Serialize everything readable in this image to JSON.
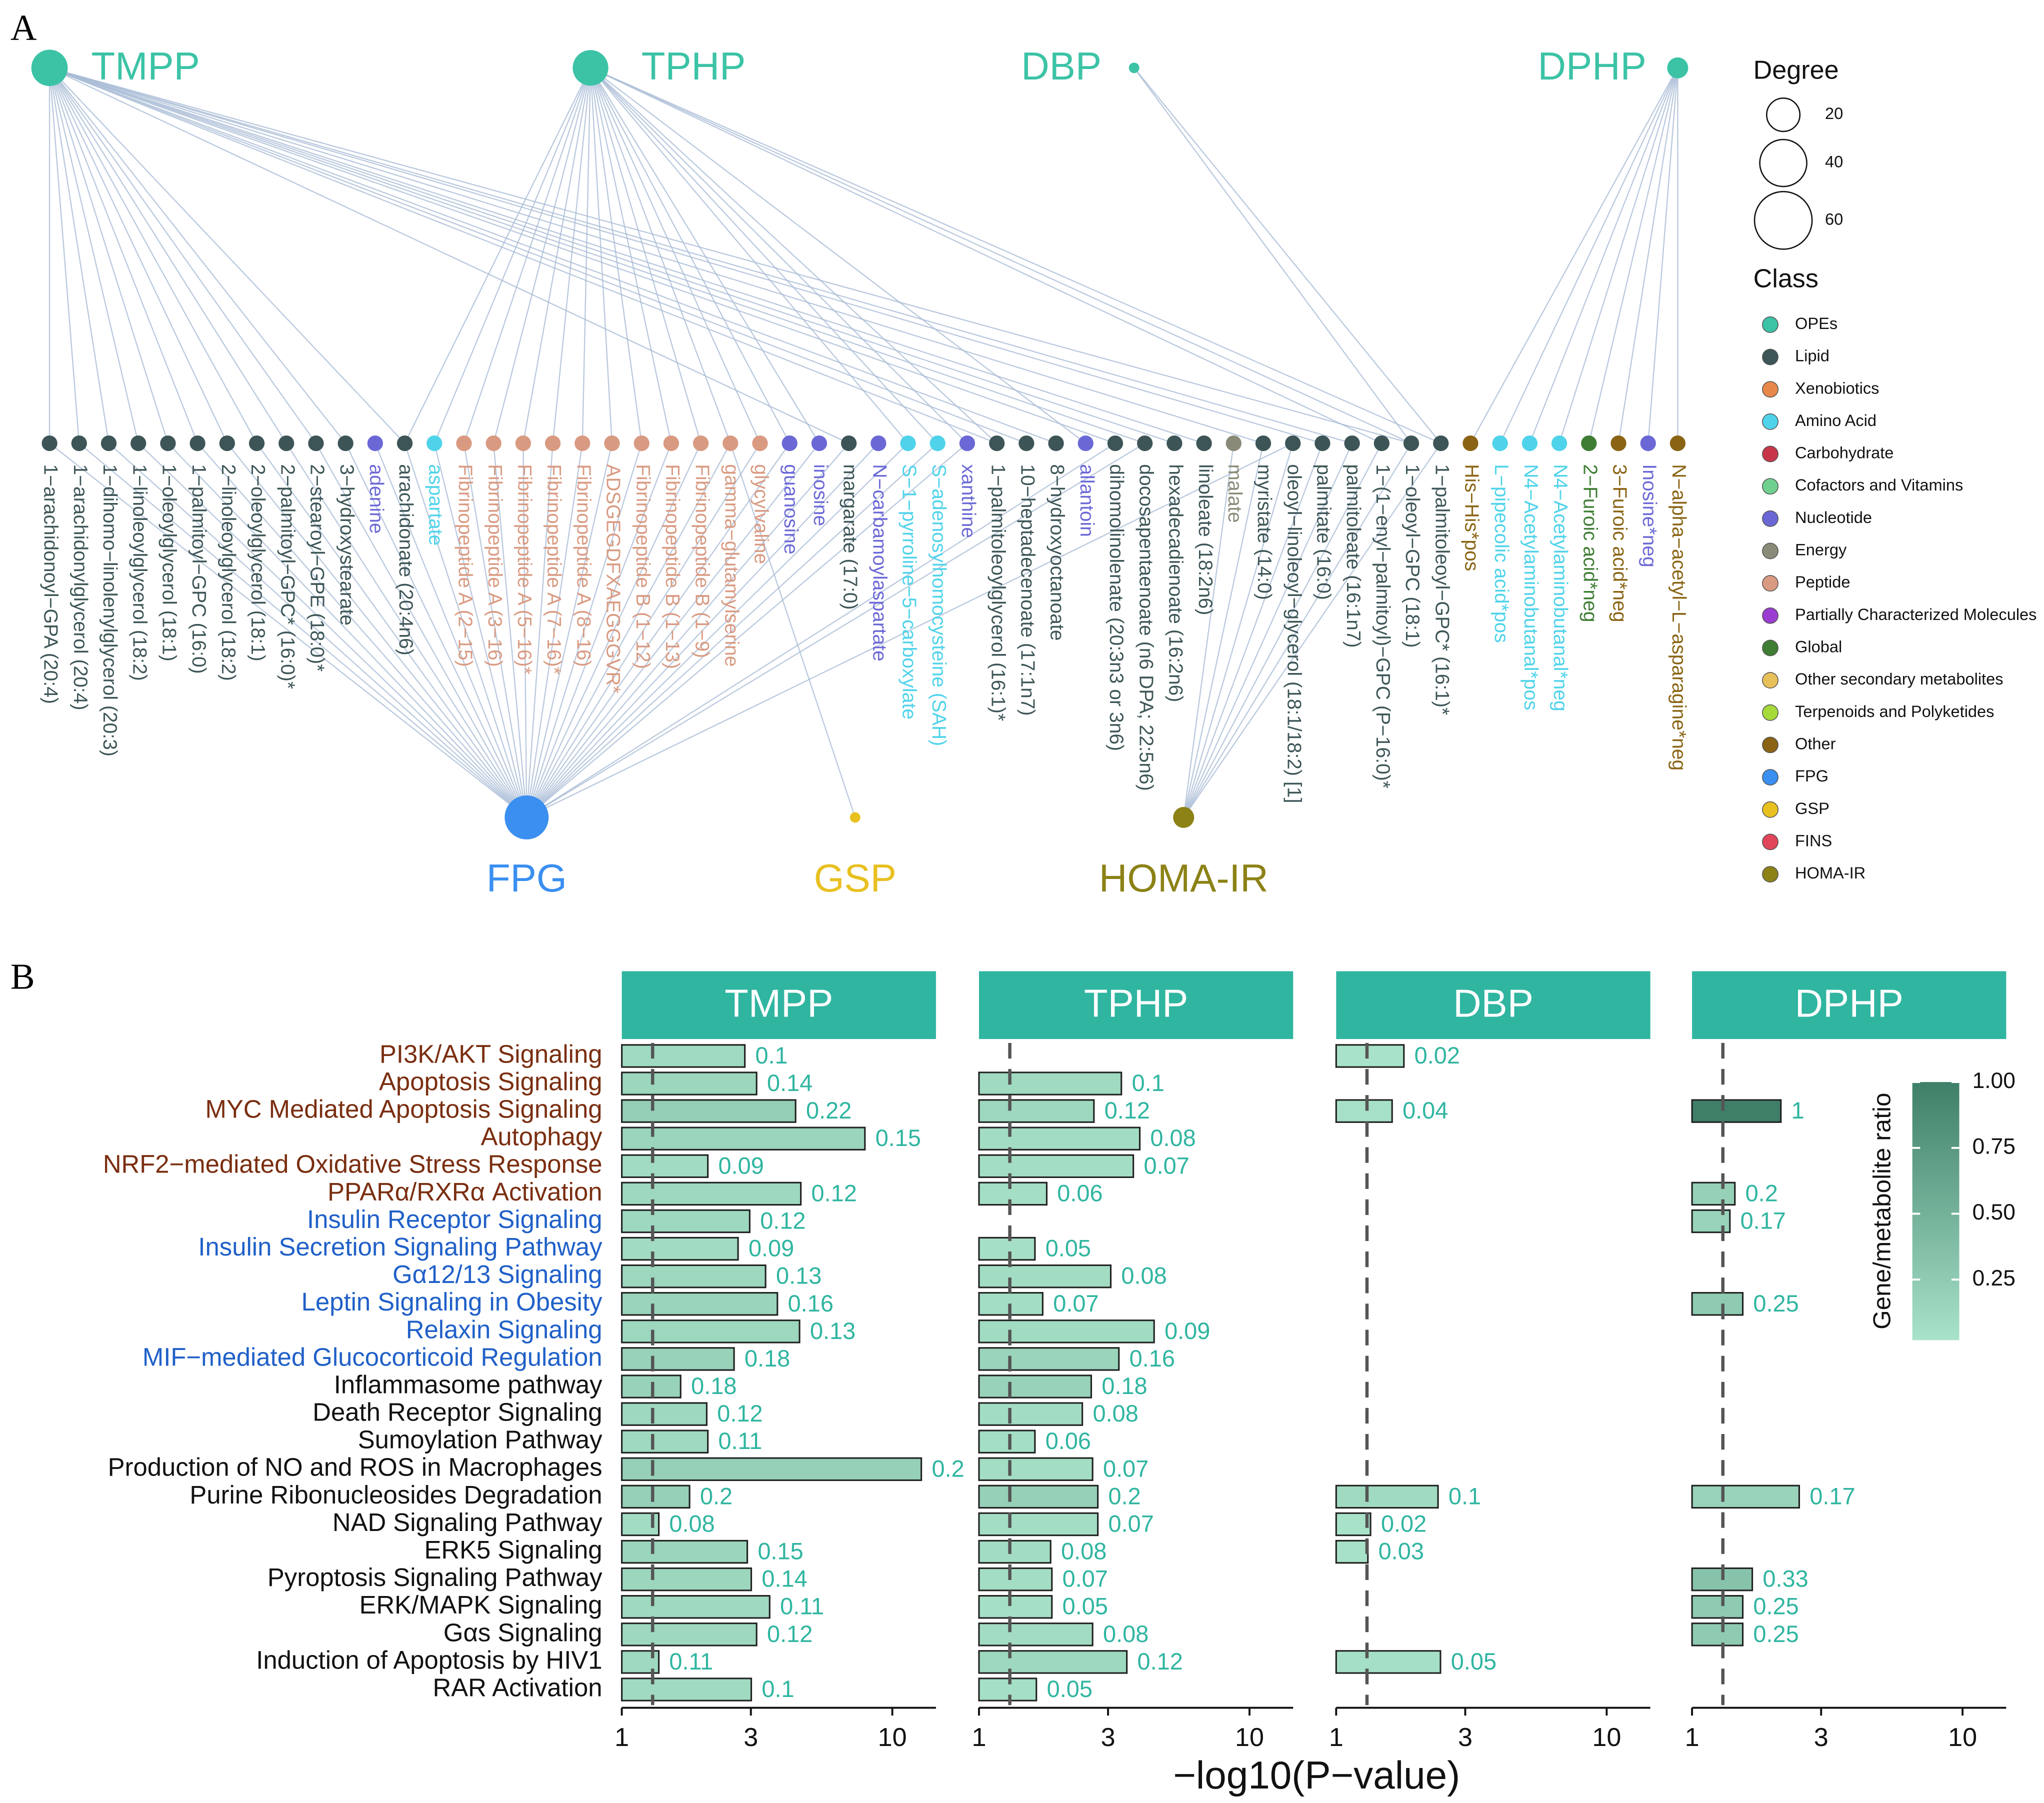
{
  "network": {
    "panel_label": "A",
    "degree_legend": {
      "title": "Degree",
      "values": [
        20,
        40,
        60
      ]
    },
    "class_legend": {
      "title": "Class",
      "classes": [
        {
          "name": "OPEs",
          "color": "#3cc3a6"
        },
        {
          "name": "Lipid",
          "color": "#3d5557"
        },
        {
          "name": "Xenobiotics",
          "color": "#e8874a"
        },
        {
          "name": "Amino Acid",
          "color": "#4fd3ea"
        },
        {
          "name": "Carbohydrate",
          "color": "#c8364a"
        },
        {
          "name": "Cofactors and Vitamins",
          "color": "#6fd08e"
        },
        {
          "name": "Nucleotide",
          "color": "#6b68d6"
        },
        {
          "name": "Energy",
          "color": "#8a8a78"
        },
        {
          "name": "Peptide",
          "color": "#d99a82"
        },
        {
          "name": "Partially Characterized Molecules",
          "color": "#9a3dd0"
        },
        {
          "name": "Global",
          "color": "#3e7d33"
        },
        {
          "name": "Other secondary metabolites",
          "color": "#e8c05a"
        },
        {
          "name": "Terpenoids and Polyketides",
          "color": "#a6d93a"
        },
        {
          "name": "Other",
          "color": "#8a6414"
        },
        {
          "name": "FPG",
          "color": "#3a8ff0"
        },
        {
          "name": "GSP",
          "color": "#e8c020"
        },
        {
          "name": "FINS",
          "color": "#e0455a"
        },
        {
          "name": "HOMA-IR",
          "color": "#8c8216"
        }
      ]
    },
    "exposures": [
      {
        "label": "TMPP",
        "class": 0,
        "targets": [
          0,
          1,
          2,
          3,
          4,
          5,
          6,
          7,
          8,
          9,
          10,
          12,
          27,
          32,
          33,
          34,
          36,
          37,
          38,
          39,
          41,
          43,
          44,
          46
        ]
      },
      {
        "label": "TPHP",
        "class": 0,
        "targets": [
          12,
          13,
          14,
          15,
          16,
          17,
          18,
          19,
          20,
          21,
          22,
          23,
          24,
          25,
          26,
          29,
          30,
          31,
          32,
          35,
          45,
          46,
          47
        ]
      },
      {
        "label": "DBP",
        "class": 0,
        "targets": [
          46,
          47
        ]
      },
      {
        "label": "DPHP",
        "class": 0,
        "targets": [
          48,
          49,
          50,
          51,
          52,
          53,
          54,
          55
        ]
      }
    ],
    "outcomes": [
      {
        "label": "FPG",
        "class": 14,
        "targets": [
          0,
          1,
          2,
          3,
          4,
          5,
          6,
          7,
          8,
          9,
          10,
          11,
          12,
          13,
          14,
          15,
          16,
          17,
          18,
          19,
          20,
          21,
          22,
          23,
          24,
          25,
          26,
          27,
          28,
          29,
          30,
          31,
          36,
          37,
          42
        ]
      },
      {
        "label": "GSP",
        "class": 15,
        "targets": [
          23
        ]
      },
      {
        "label": "HOMA-IR",
        "class": 17,
        "targets": [
          40,
          41,
          42,
          43,
          44,
          45,
          46,
          47
        ]
      }
    ],
    "metabolites": [
      {
        "label": "1−arachidonoyl−GPA (20:4)",
        "class": 1
      },
      {
        "label": "1−arachidonylglycerol (20:4)",
        "class": 1
      },
      {
        "label": "1−dihomo−linolenylglycerol (20:3)",
        "class": 1
      },
      {
        "label": "1−linoleoylglycerol (18:2)",
        "class": 1
      },
      {
        "label": "1−oleoylglycerol (18:1)",
        "class": 1
      },
      {
        "label": "1−palmitoyl−GPC (16:0)",
        "class": 1
      },
      {
        "label": "2−linoleoylglycerol (18:2)",
        "class": 1
      },
      {
        "label": "2−oleoylglycerol (18:1)",
        "class": 1
      },
      {
        "label": "2−palmitoyl−GPC* (16:0)*",
        "class": 1
      },
      {
        "label": "2−stearoyl−GPE (18:0)*",
        "class": 1
      },
      {
        "label": "3−hydroxystearate",
        "class": 1
      },
      {
        "label": "adenine",
        "class": 6
      },
      {
        "label": "arachidonate (20:4n6)",
        "class": 1
      },
      {
        "label": "aspartate",
        "class": 3
      },
      {
        "label": "Fibrinopeptide A (2−15)",
        "class": 8
      },
      {
        "label": "Fibrinopeptide A (3−16)",
        "class": 8
      },
      {
        "label": "Fibrinopeptide A (5−16)*",
        "class": 8
      },
      {
        "label": "Fibrinopeptide A (7−16)*",
        "class": 8
      },
      {
        "label": "Fibrinopeptide A (8−16)",
        "class": 8
      },
      {
        "label": "ADSGEGDFXAEGGGVR*",
        "class": 8
      },
      {
        "label": "Fibrinopeptide B (1−12)",
        "class": 8
      },
      {
        "label": "Fibrinopeptide B (1−13)",
        "class": 8
      },
      {
        "label": "Fibrinopeptide B (1−9)",
        "class": 8
      },
      {
        "label": "gamma−glutamylserine",
        "class": 8
      },
      {
        "label": "glycylvaline",
        "class": 8
      },
      {
        "label": "guanosine",
        "class": 6
      },
      {
        "label": "inosine",
        "class": 6
      },
      {
        "label": "margarate (17:0)",
        "class": 1
      },
      {
        "label": "N−carbamoylaspartate",
        "class": 6
      },
      {
        "label": "S−1−pyrroline−5−carboxylate",
        "class": 3
      },
      {
        "label": "S−adenosylhomocysteine (SAH)",
        "class": 3
      },
      {
        "label": "xanthine",
        "class": 6
      },
      {
        "label": "1−palmitoleoylglycerol (16:1)*",
        "class": 1
      },
      {
        "label": "10−heptadecenoate (17:1n7)",
        "class": 1
      },
      {
        "label": "8−hydroxyoctanoate",
        "class": 1
      },
      {
        "label": "allantoin",
        "class": 6
      },
      {
        "label": "dihomolinolenate (20:3n3 or 3n6)",
        "class": 1
      },
      {
        "label": "docosapentaenoate (n6 DPA; 22:5n6)",
        "class": 1
      },
      {
        "label": "hexadecadienoate (16:2n6)",
        "class": 1
      },
      {
        "label": "linoleate (18:2n6)",
        "class": 1
      },
      {
        "label": "malate",
        "class": 7
      },
      {
        "label": "myristate (14:0)",
        "class": 1
      },
      {
        "label": "oleoyl−linoleoyl−glycerol (18:1/18:2) [1]",
        "class": 1
      },
      {
        "label": "palmitate (16:0)",
        "class": 1
      },
      {
        "label": "palmitoleate (16:1n7)",
        "class": 1
      },
      {
        "label": "1−(1−enyl−palmitoyl)−GPC (P−16:0)*",
        "class": 1
      },
      {
        "label": "1−oleoyl−GPC (18:1)",
        "class": 1
      },
      {
        "label": "1−palmitoleoyl−GPC* (16:1)*",
        "class": 1
      },
      {
        "label": "His−His*pos",
        "class": 13
      },
      {
        "label": "L−pipecolic acid*pos",
        "class": 3
      },
      {
        "label": "N4−Acetylaminobutanal*pos",
        "class": 3
      },
      {
        "label": "N4−Acetylaminobutanal*neg",
        "class": 3
      },
      {
        "label": "2−Furoic acid*neg",
        "class": 10
      },
      {
        "label": "3−Furoic acid*neg",
        "class": 13
      },
      {
        "label": "Inosine*neg",
        "class": 6
      },
      {
        "label": "N−alpha−acetyl−L−asparagine*neg",
        "class": 13
      }
    ]
  },
  "chart_data": {
    "type": "bar",
    "panel_label": "B",
    "orientation": "horizontal",
    "log_x": true,
    "xlabel": "−log10(P−value)",
    "xlim": [
      1,
      14.5
    ],
    "xticks": [
      1,
      3,
      10
    ],
    "threshold": 1.3,
    "categories": [
      "PI3K/AKT Signaling",
      "Apoptosis Signaling",
      "MYC Mediated Apoptosis Signaling",
      "Autophagy",
      "NRF2−mediated Oxidative Stress Response",
      "PPARα/RXRα Activation",
      "Insulin Receptor Signaling",
      "Insulin Secretion Signaling Pathway",
      "Gα12/13 Signaling",
      "Leptin Signaling in Obesity",
      "Relaxin Signaling",
      "MIF−mediated Glucocorticoid Regulation",
      "Inflammasome pathway",
      "Death Receptor Signaling",
      "Sumoylation Pathway",
      "Production of NO and ROS in Macrophages",
      "Purine Ribonucleosides Degradation",
      "NAD Signaling Pathway",
      "ERK5 Signaling",
      "Pyroptosis Signaling Pathway",
      "ERK/MAPK Signaling",
      "Gαs Signaling",
      "Induction of Apoptosis by HIV1",
      "RAR Activation"
    ],
    "category_colors": [
      "#7a2e10",
      "#7a2e10",
      "#7a2e10",
      "#7a2e10",
      "#7a2e10",
      "#7a2e10",
      "#2060c8",
      "#2060c8",
      "#2060c8",
      "#2060c8",
      "#2060c8",
      "#2060c8",
      "#111111",
      "#111111",
      "#111111",
      "#111111",
      "#111111",
      "#111111",
      "#111111",
      "#111111",
      "#111111",
      "#111111",
      "#111111",
      "#111111"
    ],
    "header_color": "#2fb5a0",
    "label_color": "#2fb5a0",
    "series": [
      {
        "name": "TMPP",
        "values": [
          2.85,
          3.15,
          4.39,
          7.92,
          2.08,
          4.59,
          2.97,
          2.69,
          3.4,
          3.76,
          4.54,
          2.6,
          1.65,
          2.06,
          2.08,
          12.8,
          1.78,
          1.37,
          2.91,
          3.01,
          3.52,
          3.15,
          1.37,
          3.01
        ],
        "ratios": [
          0.1,
          0.14,
          0.22,
          0.15,
          0.09,
          0.12,
          0.12,
          0.09,
          0.13,
          0.16,
          0.13,
          0.18,
          0.18,
          0.12,
          0.11,
          0.2,
          0.2,
          0.08,
          0.15,
          0.14,
          0.11,
          0.12,
          0.11,
          0.1
        ]
      },
      {
        "name": "TPHP",
        "values": [
          null,
          3.36,
          2.66,
          3.93,
          3.72,
          1.78,
          null,
          1.61,
          3.07,
          1.72,
          4.44,
          3.29,
          2.6,
          2.41,
          1.61,
          2.63,
          2.75,
          2.75,
          1.84,
          1.86,
          1.86,
          2.63,
          3.52,
          1.63
        ],
        "ratios": [
          null,
          0.1,
          0.12,
          0.08,
          0.07,
          0.06,
          null,
          0.05,
          0.08,
          0.07,
          0.09,
          0.16,
          0.18,
          0.08,
          0.06,
          0.07,
          0.2,
          0.07,
          0.08,
          0.07,
          0.05,
          0.08,
          0.12,
          0.05
        ]
      },
      {
        "name": "DBP",
        "values": [
          1.78,
          null,
          1.61,
          null,
          null,
          null,
          null,
          null,
          null,
          null,
          null,
          null,
          null,
          null,
          null,
          null,
          2.38,
          1.34,
          1.31,
          null,
          null,
          null,
          2.43,
          null
        ],
        "ratios": [
          0.02,
          null,
          0.04,
          null,
          null,
          null,
          null,
          null,
          null,
          null,
          null,
          null,
          null,
          null,
          null,
          null,
          0.1,
          0.02,
          0.03,
          null,
          null,
          null,
          0.05,
          null
        ]
      },
      {
        "name": "DPHP",
        "values": [
          null,
          null,
          2.13,
          null,
          null,
          1.44,
          1.38,
          null,
          null,
          1.54,
          null,
          null,
          null,
          null,
          null,
          null,
          2.49,
          null,
          null,
          1.67,
          1.54,
          1.54,
          null,
          null
        ],
        "ratios": [
          null,
          null,
          1,
          null,
          null,
          0.2,
          0.17,
          null,
          null,
          0.25,
          null,
          null,
          null,
          null,
          null,
          null,
          0.17,
          null,
          null,
          0.33,
          0.25,
          0.25,
          null,
          null
        ]
      }
    ],
    "colorbar": {
      "title": "Gene/metabolite ratio",
      "lim": [
        0.02,
        1
      ],
      "ticks": [
        0.25,
        {
          "value": 0.5,
          "label": "0.50"
        },
        0.75,
        {
          "value": 1,
          "label": "1.00"
        }
      ],
      "colors": [
        "#a8e2c9",
        "#3f7f68"
      ]
    }
  }
}
